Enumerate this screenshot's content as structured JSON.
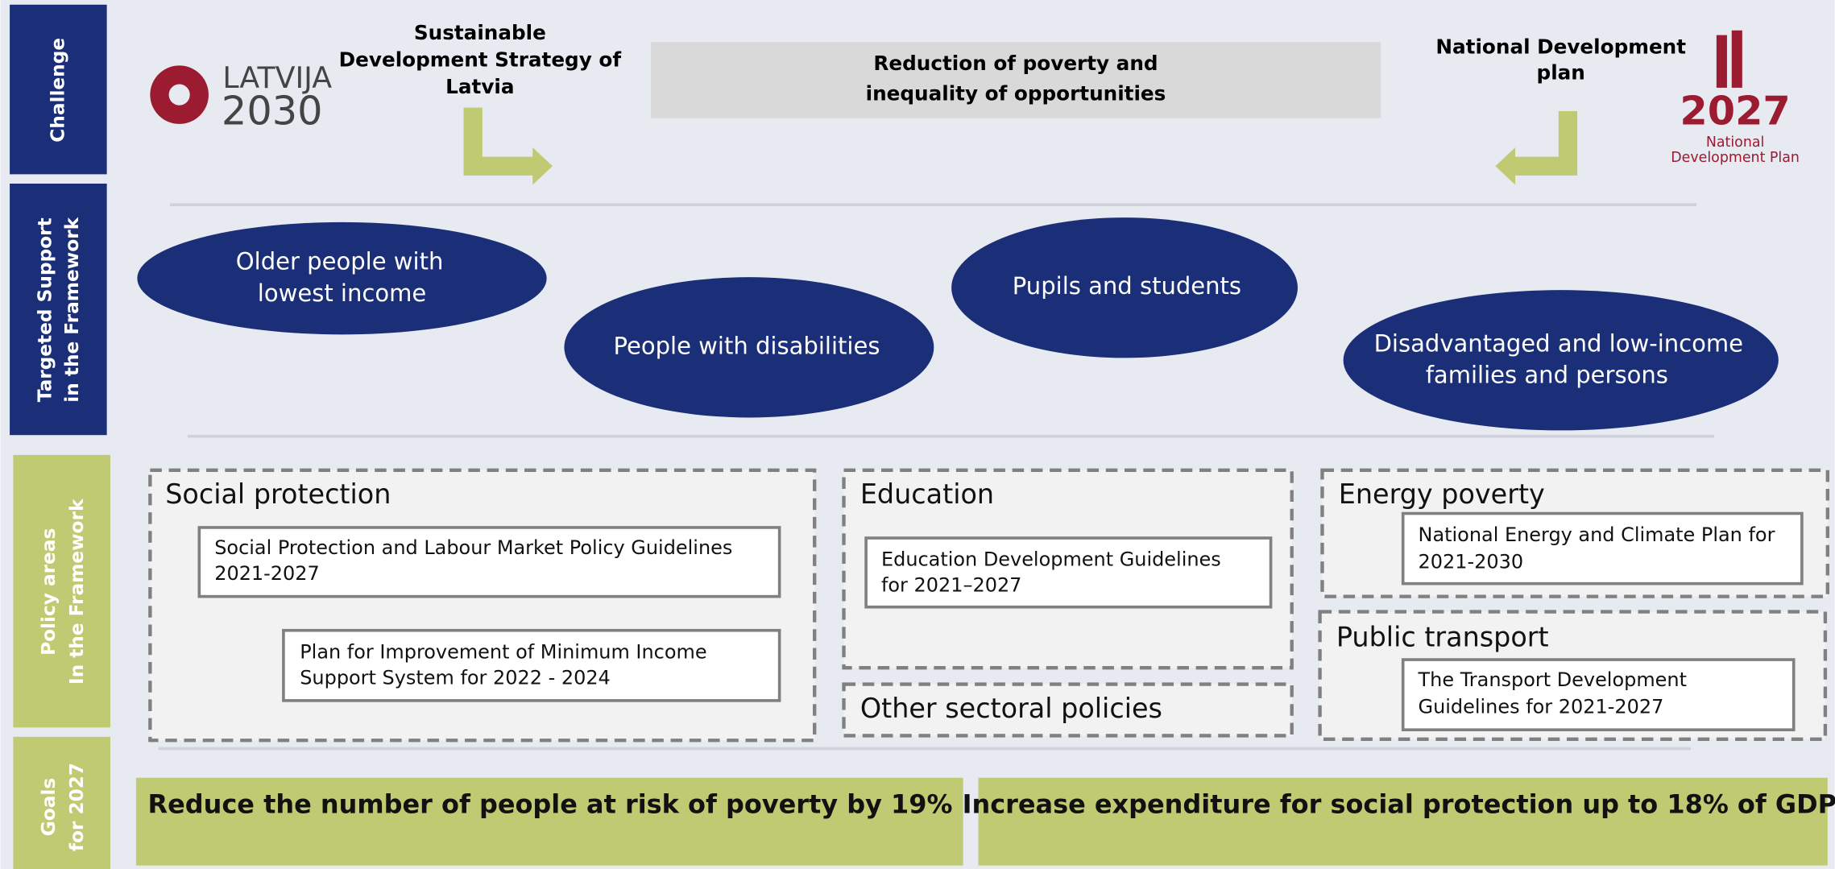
{
  "side_labels": {
    "challenge": [
      "Challenge"
    ],
    "targeted": [
      "Targeted Support",
      "in the Framework"
    ],
    "policy": [
      "Policy  areas",
      "In the Framework"
    ],
    "goals": [
      "Goals",
      "for 2027"
    ]
  },
  "logo_left": [
    "LATVIJA",
    "2030"
  ],
  "strategy": [
    "Sustainable",
    "Development Strategy of",
    "Latvia"
  ],
  "challenge_box": [
    "Reduction of poverty and",
    "inequality of opportunities"
  ],
  "national_plan": [
    "National Development",
    "plan"
  ],
  "logo_right": [
    "2027",
    "National",
    "Development Plan"
  ],
  "groups": [
    [
      "Older people with",
      "lowest income"
    ],
    [
      "People with disabilities"
    ],
    [
      "Pupils and students"
    ],
    [
      "Disadvantaged  and low-income",
      "families and persons"
    ]
  ],
  "policy_areas": {
    "social": {
      "title": "Social protection",
      "docs": [
        [
          "Social Protection and Labour Market Policy Guidelines",
          "2021-2027"
        ],
        [
          "Plan for Improvement of Minimum Income",
          "Support System for 2022 - 2024"
        ]
      ]
    },
    "education": {
      "title": "Education",
      "docs": [
        [
          "Education Development Guidelines",
          "for 2021–2027"
        ]
      ]
    },
    "other": {
      "title": "Other sectoral policies"
    },
    "energy": {
      "title": "Energy poverty",
      "docs": [
        [
          "National Energy and Climate Plan for",
          "2021-2030"
        ]
      ]
    },
    "transport": {
      "title": "Public transport",
      "docs": [
        [
          "The Transport Development",
          "Guidelines for 2021-2027"
        ]
      ]
    }
  },
  "goals": [
    "Reduce the number of people at risk of poverty by 19%",
    "Increase expenditure for social protection up to 18% of GDP"
  ]
}
